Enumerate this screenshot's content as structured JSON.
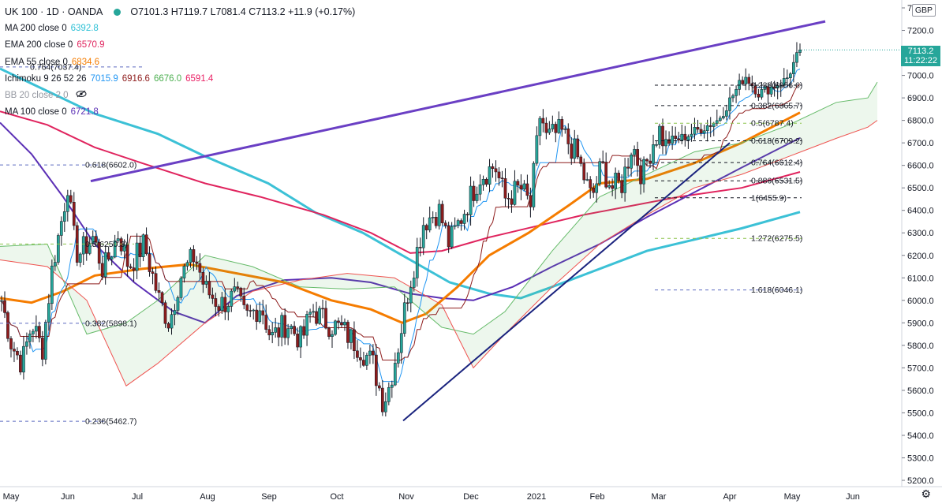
{
  "header": {
    "symbol": "UK 100 · 1D · OANDA",
    "ohlc": "O7101.3  H7119.7  L7081.4  C7113.2  +11.9 (+0.17%)"
  },
  "indicators": [
    {
      "name": "MA 200 close 0",
      "value": "6392.8",
      "color": "#2fc1d6"
    },
    {
      "name": "EMA 200 close 0",
      "value": "6570.9",
      "color": "#e0245e"
    },
    {
      "name": "EMA 55 close 0",
      "value": "6834.6",
      "color": "#f57c00"
    },
    {
      "name": "Ichimoku 9 26 52 26",
      "values": [
        "7015.9",
        "6916.6",
        "6676.0",
        "6591.4"
      ],
      "colors": [
        "#2196f3",
        "#8e1c1c",
        "#4caf50",
        "#e91e63"
      ]
    },
    {
      "name": "BB 20 close 2 0",
      "value": "",
      "color": "#9e9e9e"
    },
    {
      "name": "MA 100 close 0",
      "value": "6721.8",
      "color": "#5b2fb5"
    }
  ],
  "price_axis": {
    "currency": "GBP",
    "last_price": "7113.2",
    "countdown": "11:22:22",
    "ticks": [
      "5200.0",
      "5300.0",
      "5400.0",
      "5500.0",
      "5600.0",
      "5700.0",
      "5800.0",
      "5900.0",
      "6000.0",
      "6100.0",
      "6200.0",
      "6300.0",
      "6400.0",
      "6500.0",
      "6600.0",
      "6700.0",
      "6800.0",
      "6900.0",
      "7000.0",
      "7100.0",
      "7200.0",
      "7300.0"
    ]
  },
  "time_axis": {
    "ticks": [
      "May",
      "Jun",
      "Jul",
      "Aug",
      "Sep",
      "Oct",
      "Nov",
      "Dec",
      "2021",
      "Feb",
      "Mar",
      "Apr",
      "May",
      "Jun"
    ]
  },
  "fib_levels": [
    {
      "label": "0.618(6602.0)",
      "price": 6602.0,
      "color": "#5c6bc0"
    },
    {
      "label": "0.5(6250.3)",
      "price": 6250.3,
      "color": "#8bc34a"
    },
    {
      "label": "0.382(5898.1)",
      "price": 5898.1,
      "color": "#5c6bc0"
    },
    {
      "label": "0.236(5462.7)",
      "price": 5462.7,
      "color": "#5c6bc0"
    },
    {
      "label": "0.764(7037.4)",
      "price": 7037.4,
      "color": "#5c6bc0"
    },
    {
      "label": "0.236(6956.6)",
      "price": 6956.6,
      "color": "#131722"
    },
    {
      "label": "0.382(6865.7)",
      "price": 6865.7,
      "color": "#131722"
    },
    {
      "label": "0.5(6787.4)",
      "price": 6787.4,
      "color": "#8bc34a"
    },
    {
      "label": "0.618(6709.2)",
      "price": 6709.2,
      "color": "#131722"
    },
    {
      "label": "0.764(6612.4)",
      "price": 6612.4,
      "color": "#131722"
    },
    {
      "label": "0.886(6531.5)",
      "price": 6531.5,
      "color": "#131722"
    },
    {
      "label": "1(6455.9)",
      "price": 6455.9,
      "color": "#131722"
    },
    {
      "label": "1.272(6275.5)",
      "price": 6275.5,
      "color": "#8bc34a"
    },
    {
      "label": "1.618(6046.1)",
      "price": 6046.1,
      "color": "#5c6bc0"
    }
  ],
  "chart_data": {
    "type": "candlestick",
    "title": "UK 100 · 1D · OANDA",
    "ylim": [
      5200,
      7300
    ],
    "x_categories": [
      "May",
      "Jun",
      "Jul",
      "Aug",
      "Sep",
      "Oct",
      "Nov",
      "Dec",
      "2021",
      "Feb",
      "Mar",
      "Apr",
      "May",
      "Jun"
    ],
    "last_close": 7113.2,
    "price_anchor_points": [
      {
        "month": "May",
        "close": 6000
      },
      {
        "month": "Jun",
        "close": 6250
      },
      {
        "month": "Jul",
        "close": 6200
      },
      {
        "month": "Aug",
        "close": 6050
      },
      {
        "month": "Sep",
        "close": 5950
      },
      {
        "month": "Oct",
        "close": 5900
      },
      {
        "month": "Nov",
        "close": 5600
      },
      {
        "month": "Dec",
        "close": 6450
      },
      {
        "month": "2021",
        "close": 6700
      },
      {
        "month": "Feb",
        "close": 6600
      },
      {
        "month": "Mar",
        "close": 6650
      },
      {
        "month": "Apr",
        "close": 6900
      },
      {
        "month": "May",
        "close": 7113.2
      }
    ],
    "trend_lines": [
      {
        "name": "resistance",
        "from": {
          "month": "Jun",
          "price": 6530
        },
        "to": {
          "month": "May",
          "price": 7240
        },
        "color": "#6a3fc4"
      },
      {
        "name": "support",
        "from": {
          "month": "Nov",
          "price": 5465
        },
        "to": {
          "month": "Apr",
          "price": 6700
        },
        "color": "#1a237e"
      }
    ],
    "grid": false,
    "legend": "top-left"
  }
}
